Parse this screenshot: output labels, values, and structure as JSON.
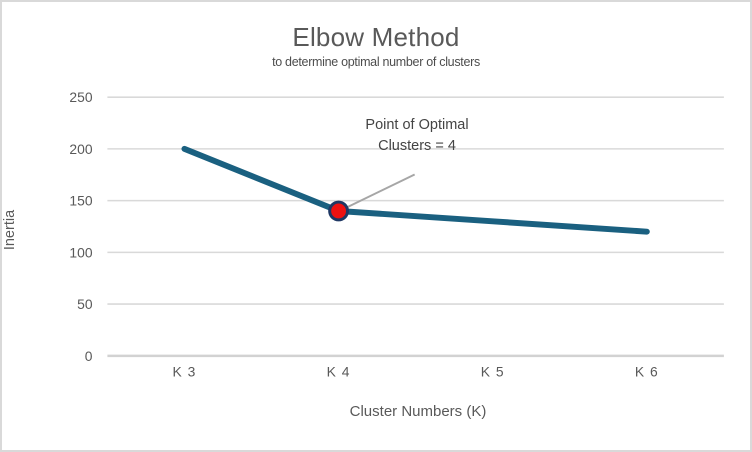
{
  "page": {
    "background": "#ffffff",
    "border_color": "#d9d9d9"
  },
  "chart_data": {
    "type": "line",
    "title": "Elbow Method",
    "subtitle": "to determine optimal number of clusters",
    "categories": [
      "K 3",
      "K 4",
      "K 5",
      "K 6"
    ],
    "series": [
      {
        "name": "Inertia",
        "values": [
          200,
          140,
          130,
          120
        ],
        "color": "#1a6080",
        "stroke_width": 6
      }
    ],
    "xlabel": "Cluster Numbers (K)",
    "ylabel": "Inertia",
    "ylim": [
      0,
      250
    ],
    "y_ticks": [
      0,
      50,
      100,
      150,
      200,
      250
    ],
    "grid": "horizontal",
    "gridline_color": "#d9d9d9",
    "axisline_color": "#d2d2d2",
    "legend": "none",
    "annotation": {
      "text_lines": [
        "Point of Optimal",
        "Clusters = 4"
      ],
      "marker_category": "K 4",
      "marker_value": 140,
      "marker_fill": "#ee1111",
      "marker_stroke": "#1f3864",
      "leader_color": "#a6a6a6"
    }
  }
}
